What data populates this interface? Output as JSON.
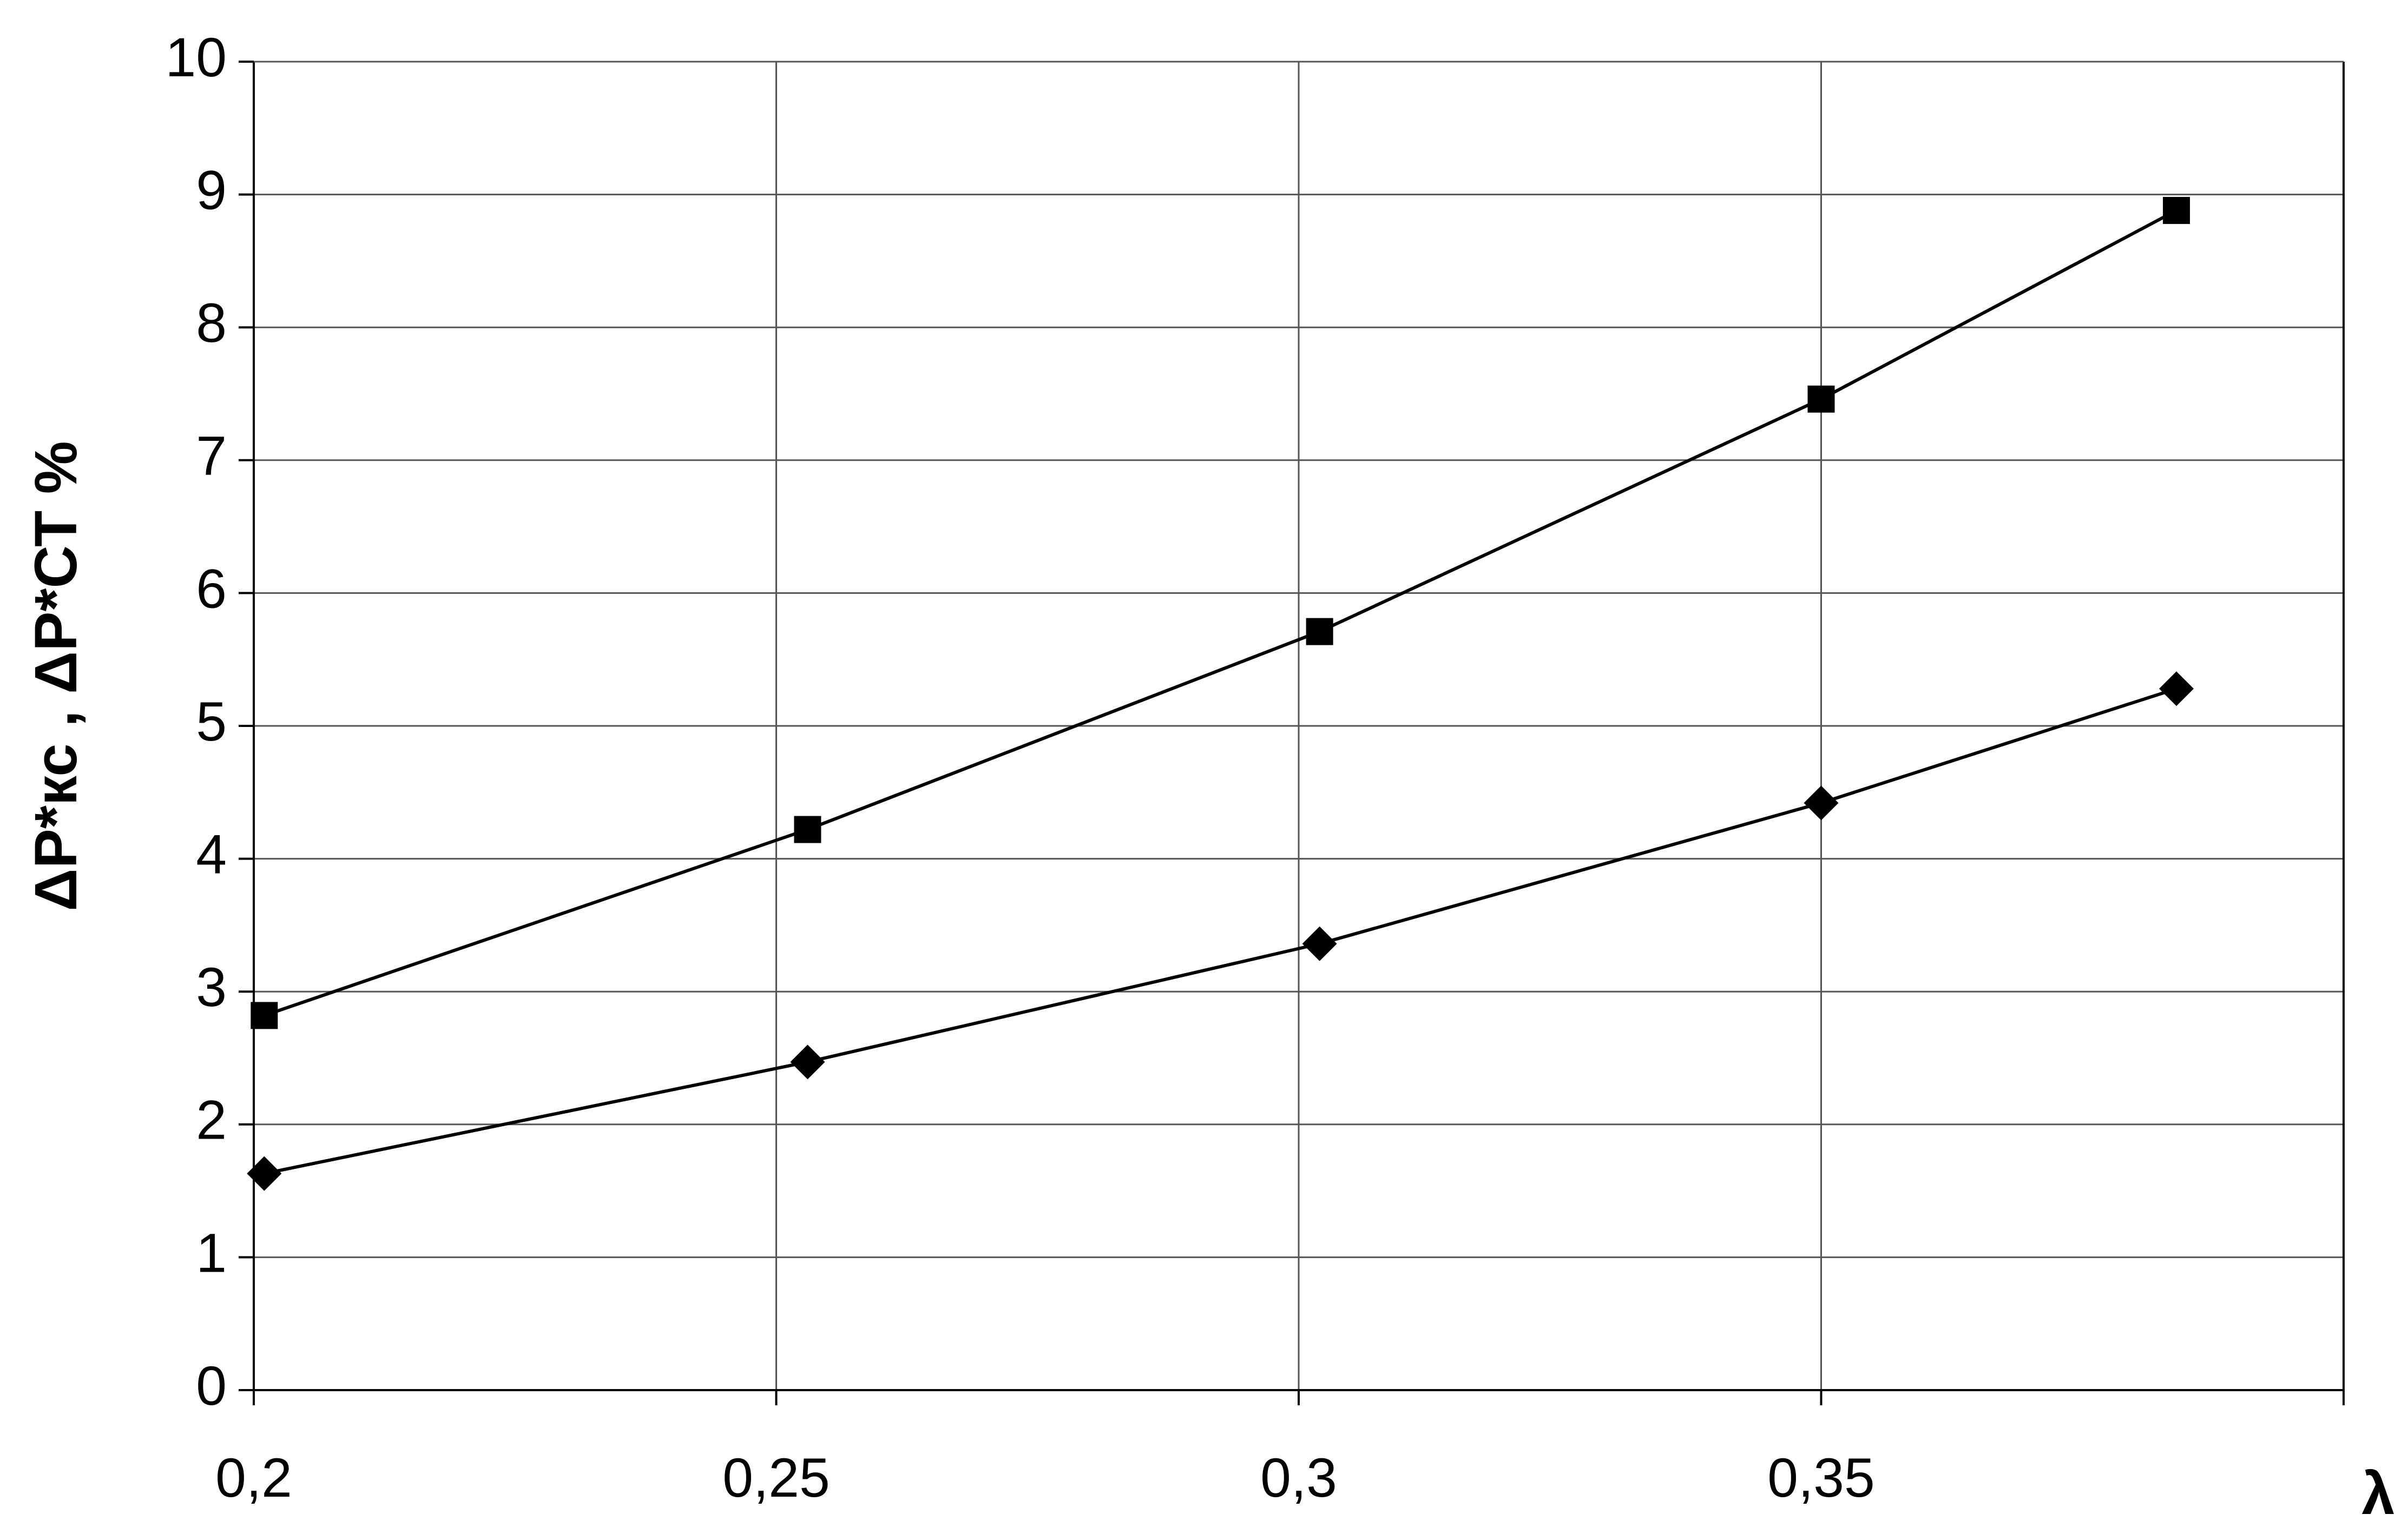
{
  "chart_data": {
    "type": "line",
    "x_label": "λ",
    "y_label": "ΔP*кс , ΔP*СТ %",
    "xlim": [
      0.2,
      0.4
    ],
    "xticks": [
      {
        "value": 0.2,
        "label": "0,2"
      },
      {
        "value": 0.25,
        "label": "0,25"
      },
      {
        "value": 0.3,
        "label": "0,3"
      },
      {
        "value": 0.35,
        "label": "0,35"
      }
    ],
    "ylim": [
      0,
      10
    ],
    "yticks": [
      0,
      1,
      2,
      3,
      4,
      5,
      6,
      7,
      8,
      9,
      10
    ],
    "grid": true,
    "series": [
      {
        "color": "#000000",
        "marker": "square",
        "x": [
          0.201,
          0.253,
          0.302,
          0.35,
          0.384
        ],
        "values": [
          2.82,
          4.22,
          5.71,
          7.46,
          8.88
        ]
      },
      {
        "color": "#000000",
        "marker": "diamond",
        "x": [
          0.201,
          0.253,
          0.302,
          0.35,
          0.384
        ],
        "values": [
          1.63,
          2.47,
          3.36,
          4.42,
          5.28
        ]
      }
    ]
  }
}
